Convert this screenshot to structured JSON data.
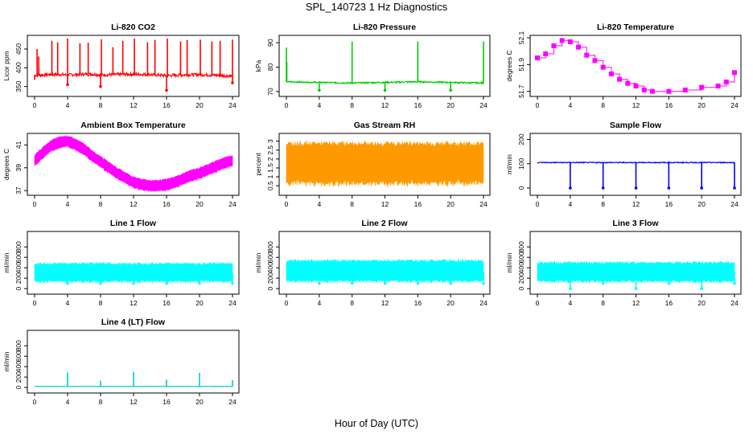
{
  "title": "SPL_140723  1 Hz Diagnostics",
  "xlabel": "Hour of Day (UTC)",
  "chart_data": [
    {
      "type": "line",
      "title": "Li-820 CO2",
      "ylabel": "Licor ppm",
      "color": "#ff0000",
      "xlim": [
        0,
        24
      ],
      "xticks": [
        0,
        4,
        8,
        12,
        16,
        20,
        24
      ],
      "ylim": [
        330,
        480
      ],
      "yticks": [
        350,
        400,
        450
      ],
      "base": [
        [
          0,
          380
        ],
        [
          1,
          381
        ],
        [
          2,
          382
        ],
        [
          3,
          382
        ],
        [
          4,
          381
        ],
        [
          5,
          382
        ],
        [
          6,
          383
        ],
        [
          7,
          383
        ],
        [
          8,
          381
        ],
        [
          10,
          382
        ],
        [
          12,
          383
        ],
        [
          14,
          382
        ],
        [
          16,
          379
        ],
        [
          18,
          381
        ],
        [
          20,
          382
        ],
        [
          22,
          380
        ],
        [
          24,
          378
        ]
      ],
      "noise": 4,
      "spikes": [
        [
          0,
          368
        ],
        [
          0.3,
          450
        ],
        [
          0.5,
          430
        ],
        [
          2.1,
          472
        ],
        [
          2.8,
          468
        ],
        [
          4,
          478
        ],
        [
          5.5,
          465
        ],
        [
          6.5,
          467
        ],
        [
          8.1,
          476
        ],
        [
          9.5,
          455
        ],
        [
          10.7,
          472
        ],
        [
          12.1,
          478
        ],
        [
          13.7,
          468
        ],
        [
          14.6,
          474
        ],
        [
          16.1,
          478
        ],
        [
          17.7,
          470
        ],
        [
          18.5,
          474
        ],
        [
          20.1,
          475
        ],
        [
          21.5,
          470
        ],
        [
          22.5,
          472
        ],
        [
          24,
          475
        ]
      ],
      "dips": [
        [
          4,
          355
        ],
        [
          8,
          350
        ],
        [
          16,
          340
        ],
        [
          24,
          360
        ]
      ]
    },
    {
      "type": "line",
      "title": "Li-820 Pressure",
      "ylabel": "kPa",
      "color": "#00cc00",
      "xlim": [
        0,
        24
      ],
      "xticks": [
        0,
        4,
        8,
        12,
        16,
        20,
        24
      ],
      "ylim": [
        69,
        92
      ],
      "yticks": [
        70,
        80,
        90
      ],
      "base": [
        [
          0,
          74
        ],
        [
          8,
          73.5
        ],
        [
          16,
          74
        ],
        [
          24,
          73.5
        ]
      ],
      "noise": 0.3,
      "spikes": [
        [
          0,
          88
        ],
        [
          0.05,
          82
        ],
        [
          8,
          90.5
        ],
        [
          16,
          90.5
        ],
        [
          24,
          90.5
        ]
      ],
      "dips": [
        [
          4,
          70.5
        ],
        [
          12,
          70.5
        ],
        [
          20,
          70.5
        ]
      ]
    },
    {
      "type": "step",
      "title": "Li-820 Temperature",
      "ylabel": "degrees C",
      "color": "#ff00ff",
      "xlim": [
        0,
        24
      ],
      "xticks": [
        0,
        4,
        8,
        12,
        16,
        20,
        24
      ],
      "ylim": [
        51.68,
        52.1
      ],
      "yticks": [
        51.7,
        51.9,
        52.1
      ],
      "base": [
        [
          0,
          51.95
        ],
        [
          1,
          51.98
        ],
        [
          2,
          52.04
        ],
        [
          3,
          52.08
        ],
        [
          4,
          52.07
        ],
        [
          5,
          52.03
        ],
        [
          6,
          51.97
        ],
        [
          7,
          51.93
        ],
        [
          8,
          51.88
        ],
        [
          9,
          51.83
        ],
        [
          10,
          51.79
        ],
        [
          11,
          51.76
        ],
        [
          12,
          51.74
        ],
        [
          13,
          51.71
        ],
        [
          14,
          51.7
        ],
        [
          16,
          51.7
        ],
        [
          18,
          51.71
        ],
        [
          20,
          51.73
        ],
        [
          22,
          51.74
        ],
        [
          23,
          51.77
        ],
        [
          24,
          51.84
        ]
      ],
      "noise": 0,
      "spikes": [],
      "dips": []
    },
    {
      "type": "band",
      "title": "Ambient Box Temperature",
      "ylabel": "degrees C",
      "color": "#ff00ff",
      "xlim": [
        0,
        24
      ],
      "xticks": [
        0,
        4,
        8,
        12,
        16,
        20,
        24
      ],
      "ylim": [
        36.8,
        41.8
      ],
      "yticks": [
        37,
        39,
        41
      ],
      "base": [
        [
          0,
          39.6
        ],
        [
          1,
          40.3
        ],
        [
          2,
          40.9
        ],
        [
          3,
          41.2
        ],
        [
          4,
          41.3
        ],
        [
          5,
          41
        ],
        [
          6,
          40.6
        ],
        [
          7,
          40
        ],
        [
          8,
          39.5
        ],
        [
          9,
          39
        ],
        [
          10,
          38.5
        ],
        [
          11,
          38.1
        ],
        [
          12,
          37.7
        ],
        [
          13,
          37.5
        ],
        [
          14,
          37.4
        ],
        [
          15,
          37.4
        ],
        [
          16,
          37.5
        ],
        [
          17,
          37.7
        ],
        [
          18,
          38
        ],
        [
          19,
          38.3
        ],
        [
          20,
          38.5
        ],
        [
          21,
          38.8
        ],
        [
          22,
          39.1
        ],
        [
          23,
          39.4
        ],
        [
          24,
          39.6
        ]
      ],
      "noise": 0.55,
      "spikes": [],
      "dips": []
    },
    {
      "type": "band",
      "title": "Gas Stream RH",
      "ylabel": "percent",
      "color": "#ff9900",
      "xlim": [
        0,
        24
      ],
      "xticks": [
        0,
        4,
        8,
        12,
        16,
        20,
        24
      ],
      "ylim": [
        0.1,
        3.3
      ],
      "yticks": [
        0.5,
        1,
        1.5,
        2,
        2.5,
        3
      ],
      "base": [
        [
          0,
          1.7
        ],
        [
          24,
          1.7
        ]
      ],
      "noise": 1.3,
      "spikes": [],
      "dips": []
    },
    {
      "type": "line",
      "title": "Sample Flow",
      "ylabel": "ml/min",
      "color": "#0000ff",
      "xlim": [
        0,
        24
      ],
      "xticks": [
        0,
        4,
        8,
        12,
        16,
        20,
        24
      ],
      "ylim": [
        -20,
        215
      ],
      "yticks": [
        0,
        100,
        200
      ],
      "base": [
        [
          0,
          105
        ],
        [
          24,
          105
        ]
      ],
      "noise": 2,
      "spikes": [],
      "dips": [
        [
          4,
          0
        ],
        [
          8,
          0
        ],
        [
          12,
          0
        ],
        [
          16,
          0
        ],
        [
          20,
          0
        ],
        [
          24,
          0
        ]
      ]
    },
    {
      "type": "band",
      "title": "Line 1 Flow",
      "ylabel": "ml/min",
      "color": "#00ffff",
      "xlim": [
        0,
        24
      ],
      "xticks": [
        0,
        4,
        8,
        12,
        16,
        20,
        24
      ],
      "ylim": [
        -60,
        1050
      ],
      "yticks": [
        0,
        200,
        400,
        600,
        800
      ],
      "base": [
        [
          0,
          300
        ],
        [
          24,
          300
        ]
      ],
      "noise": 200,
      "spikes": [],
      "dips": [
        [
          4,
          100
        ],
        [
          8,
          100
        ],
        [
          12,
          100
        ],
        [
          16,
          100
        ],
        [
          20,
          100
        ],
        [
          24,
          100
        ]
      ]
    },
    {
      "type": "band",
      "title": "Line 2 Flow",
      "ylabel": "ml/min",
      "color": "#00ffff",
      "xlim": [
        0,
        24
      ],
      "xticks": [
        0,
        4,
        8,
        12,
        16,
        20,
        24
      ],
      "ylim": [
        -60,
        1050
      ],
      "yticks": [
        0,
        200,
        400,
        600,
        800
      ],
      "base": [
        [
          0,
          330
        ],
        [
          24,
          330
        ]
      ],
      "noise": 230,
      "spikes": [],
      "dips": [
        [
          4,
          100
        ],
        [
          8,
          100
        ],
        [
          12,
          100
        ],
        [
          16,
          100
        ],
        [
          20,
          100
        ],
        [
          24,
          100
        ]
      ]
    },
    {
      "type": "band",
      "title": "Line 3 Flow",
      "ylabel": "ml/min",
      "color": "#00ffff",
      "xlim": [
        0,
        24
      ],
      "xticks": [
        0,
        4,
        8,
        12,
        16,
        20,
        24
      ],
      "ylim": [
        -60,
        1050
      ],
      "yticks": [
        0,
        200,
        400,
        600,
        800
      ],
      "base": [
        [
          0,
          310
        ],
        [
          24,
          310
        ]
      ],
      "noise": 210,
      "spikes": [],
      "dips": [
        [
          4,
          0
        ],
        [
          8,
          100
        ],
        [
          12,
          0
        ],
        [
          16,
          100
        ],
        [
          20,
          0
        ],
        [
          24,
          100
        ]
      ]
    },
    {
      "type": "line",
      "title": "Line 4 (LT) Flow",
      "ylabel": "ml/min",
      "color": "#00cccc",
      "xlim": [
        0,
        24
      ],
      "xticks": [
        0,
        4,
        8,
        12,
        16,
        20,
        24
      ],
      "ylim": [
        -60,
        1050
      ],
      "yticks": [
        0,
        200,
        400,
        600,
        800
      ],
      "base": [
        [
          0,
          20
        ],
        [
          24,
          20
        ]
      ],
      "noise": 3,
      "spikes": [
        [
          4,
          290
        ],
        [
          8,
          130
        ],
        [
          12,
          300
        ],
        [
          16,
          150
        ],
        [
          20,
          280
        ],
        [
          24,
          140
        ]
      ],
      "dips": []
    }
  ]
}
